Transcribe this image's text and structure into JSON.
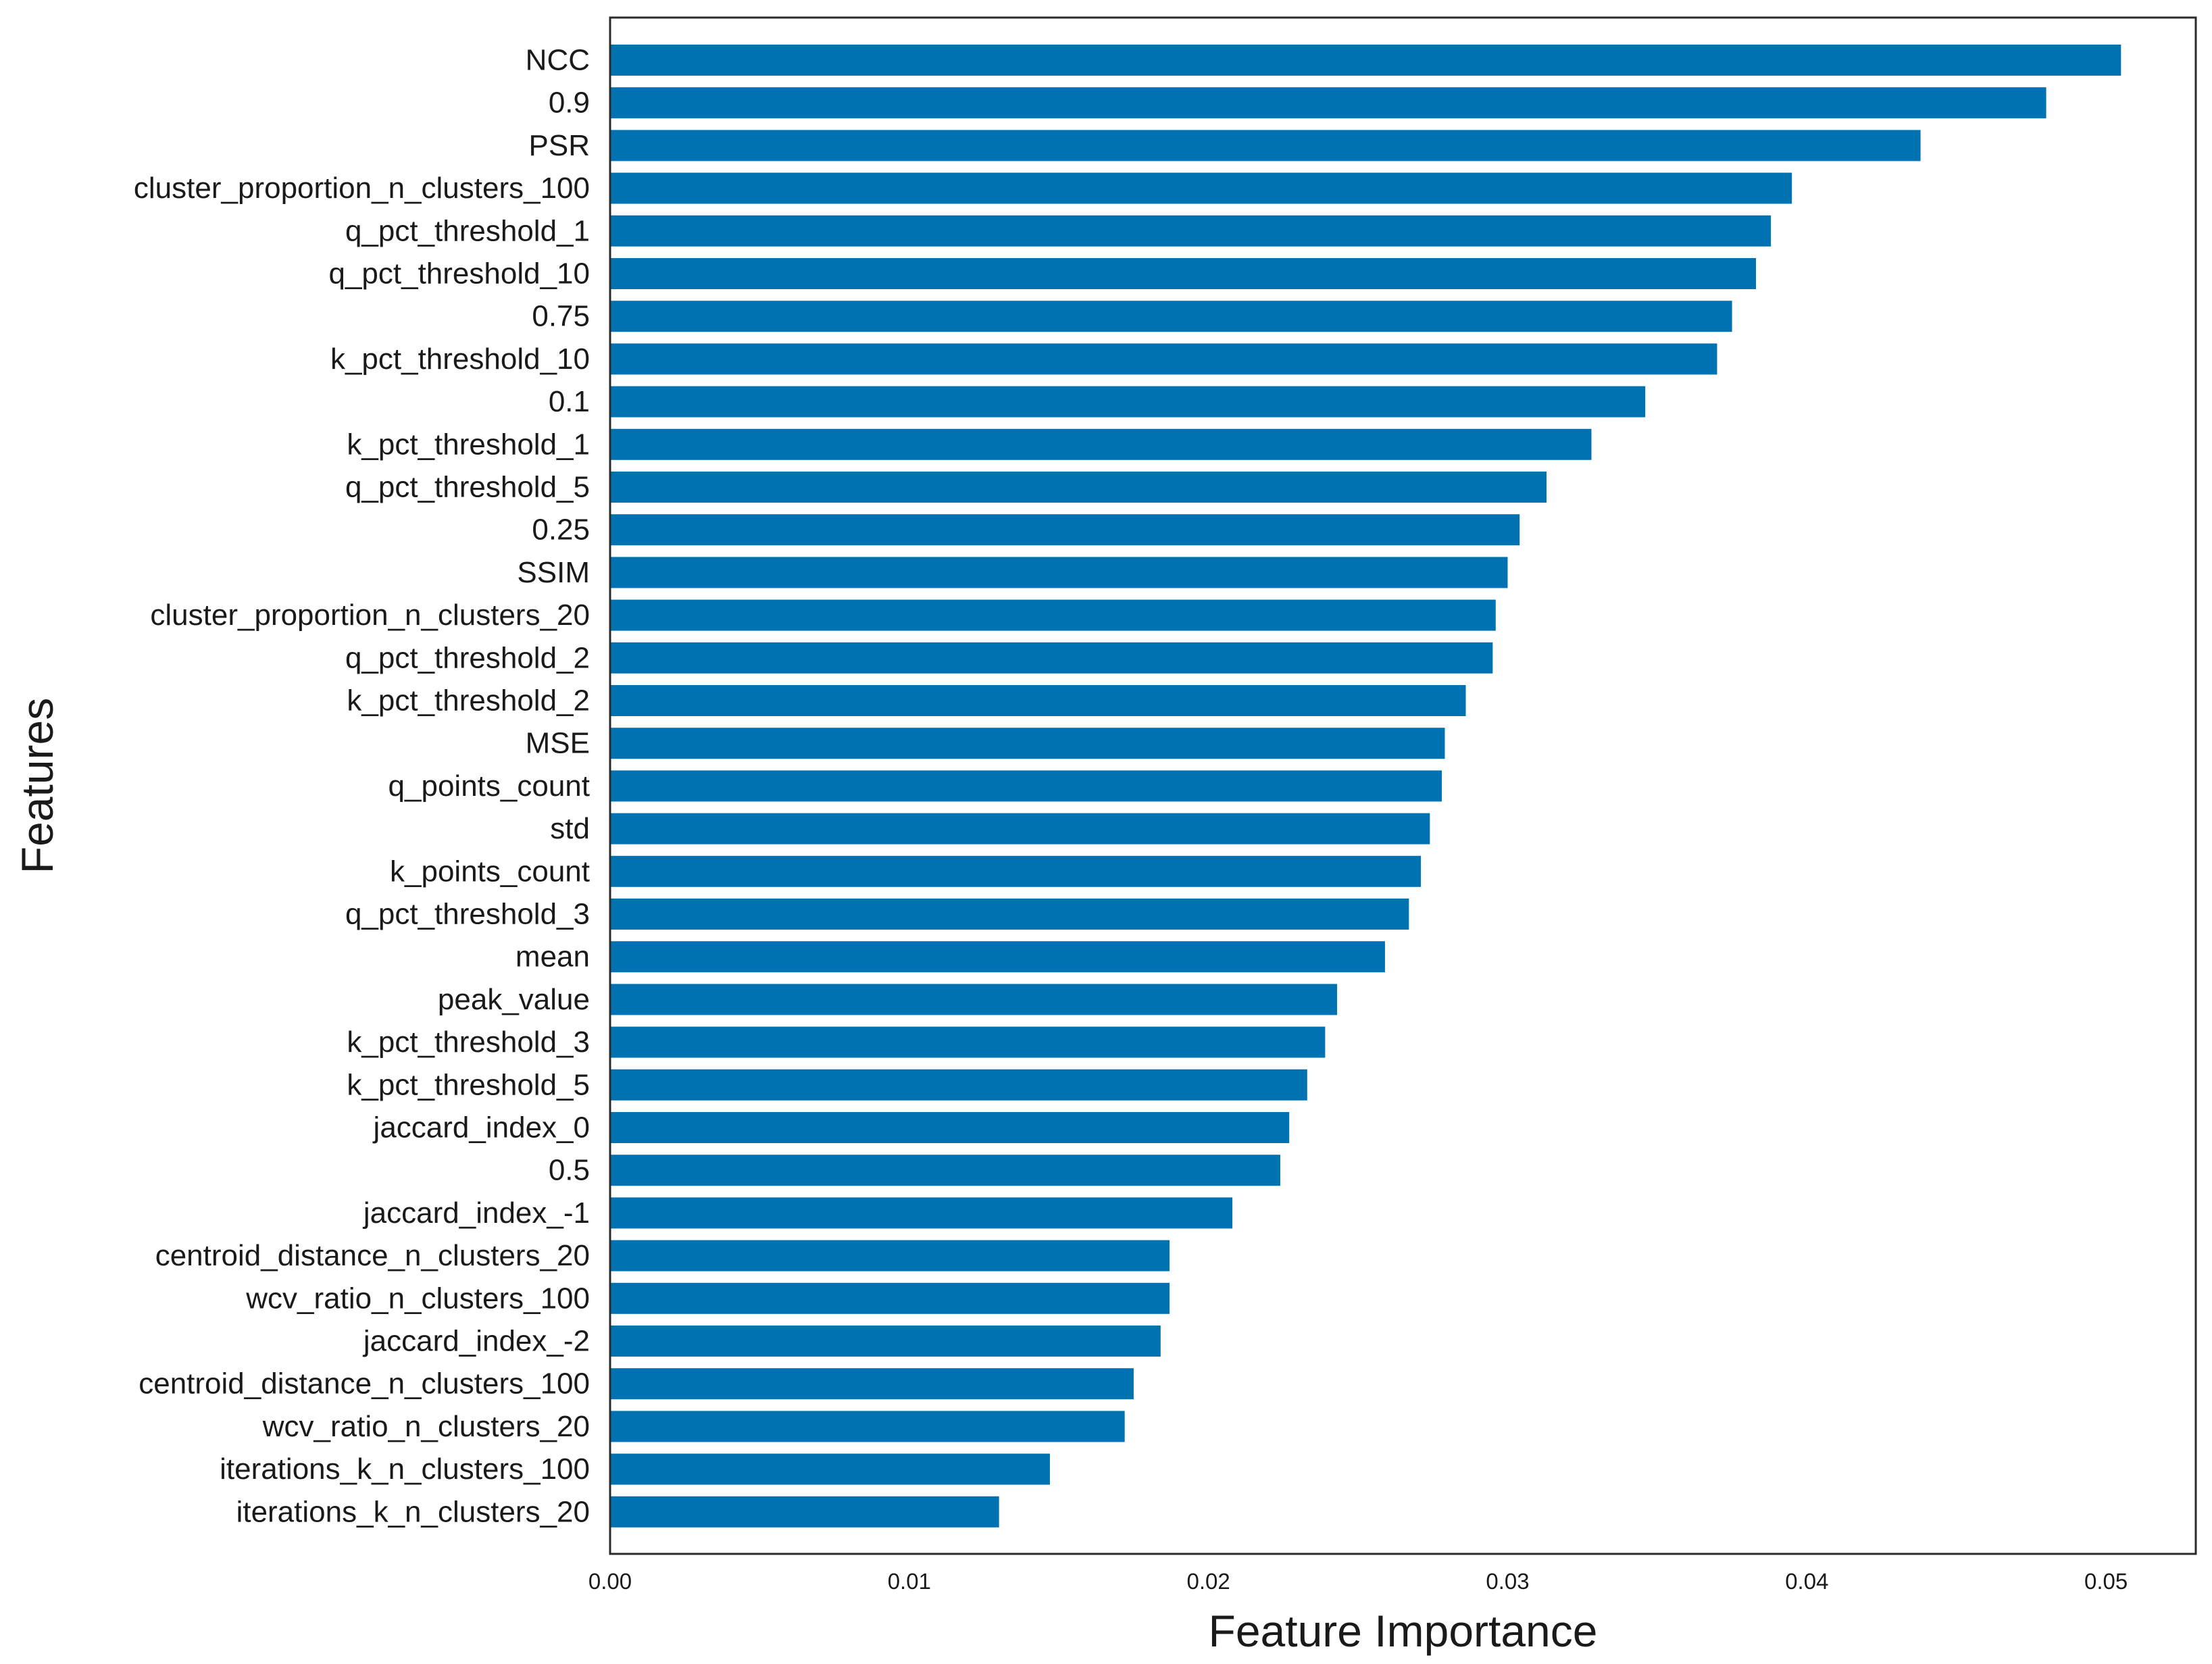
{
  "chart_data": {
    "type": "bar",
    "orientation": "horizontal",
    "title": "",
    "xlabel": "Feature Importance",
    "ylabel": "Features",
    "xlim": [
      0.0,
      0.053
    ],
    "xticks": [
      0.0,
      0.01,
      0.02,
      0.03,
      0.04,
      0.05
    ],
    "xtick_labels": [
      "0.00",
      "0.01",
      "0.02",
      "0.03",
      "0.04",
      "0.05"
    ],
    "grid": false,
    "bar_color": "#0072b2",
    "categories": [
      "NCC",
      "0.9",
      "PSR",
      "cluster_proportion_n_clusters_100",
      "q_pct_threshold_1",
      "q_pct_threshold_10",
      "0.75",
      "k_pct_threshold_10",
      "0.1",
      "k_pct_threshold_1",
      "q_pct_threshold_5",
      "0.25",
      "SSIM",
      "cluster_proportion_n_clusters_20",
      "q_pct_threshold_2",
      "k_pct_threshold_2",
      "MSE",
      "q_points_count",
      "std",
      "k_points_count",
      "q_pct_threshold_3",
      "mean",
      "peak_value",
      "k_pct_threshold_3",
      "k_pct_threshold_5",
      "jaccard_index_0",
      "0.5",
      "jaccard_index_-1",
      "centroid_distance_n_clusters_20",
      "wcv_ratio_n_clusters_100",
      "jaccard_index_-2",
      "centroid_distance_n_clusters_100",
      "wcv_ratio_n_clusters_20",
      "iterations_k_n_clusters_100",
      "iterations_k_n_clusters_20"
    ],
    "values": [
      0.0505,
      0.048,
      0.0438,
      0.0395,
      0.0388,
      0.0383,
      0.0375,
      0.037,
      0.0346,
      0.0328,
      0.0313,
      0.0304,
      0.03,
      0.0296,
      0.0295,
      0.0286,
      0.0279,
      0.0278,
      0.0274,
      0.0271,
      0.0267,
      0.0259,
      0.0243,
      0.0239,
      0.0233,
      0.0227,
      0.0224,
      0.0208,
      0.0187,
      0.0187,
      0.0184,
      0.0175,
      0.0172,
      0.0147,
      0.013
    ]
  }
}
